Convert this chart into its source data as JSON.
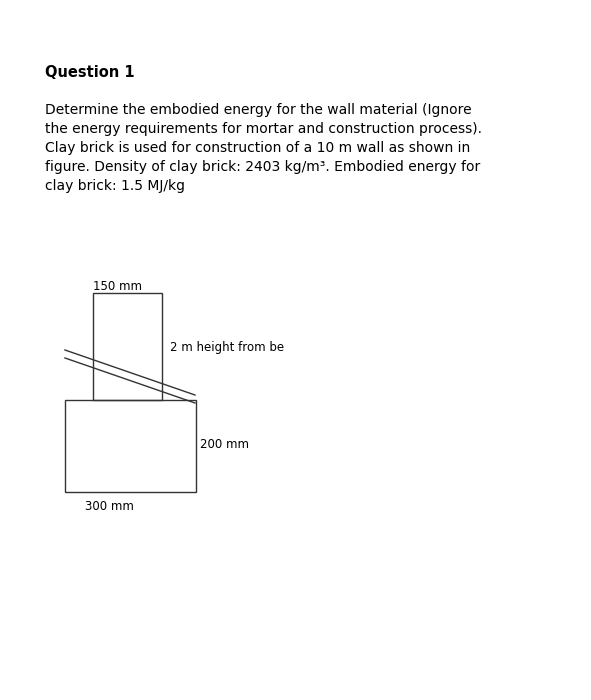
{
  "title": "Question 1",
  "line1": "Determine the embodied energy for the wall material (Ignore",
  "line2": "the energy requirements for mortar and construction process).",
  "line3": "Clay brick is used for construction of a 10 m wall as shown in",
  "line4": "figure. Density of clay brick: 2403 kg/m³. Embodied energy for",
  "line5": "clay brick: 1.5 MJ/kg",
  "background_color": "#ffffff",
  "text_color": "#000000",
  "figure_color": "#333333",
  "label_150mm": "150 mm",
  "label_300mm": "300 mm",
  "label_200mm": "200 mm",
  "label_height": "2 m height from be",
  "title_fontsize": 10.5,
  "body_fontsize": 10.0,
  "label_fontsize": 8.5
}
